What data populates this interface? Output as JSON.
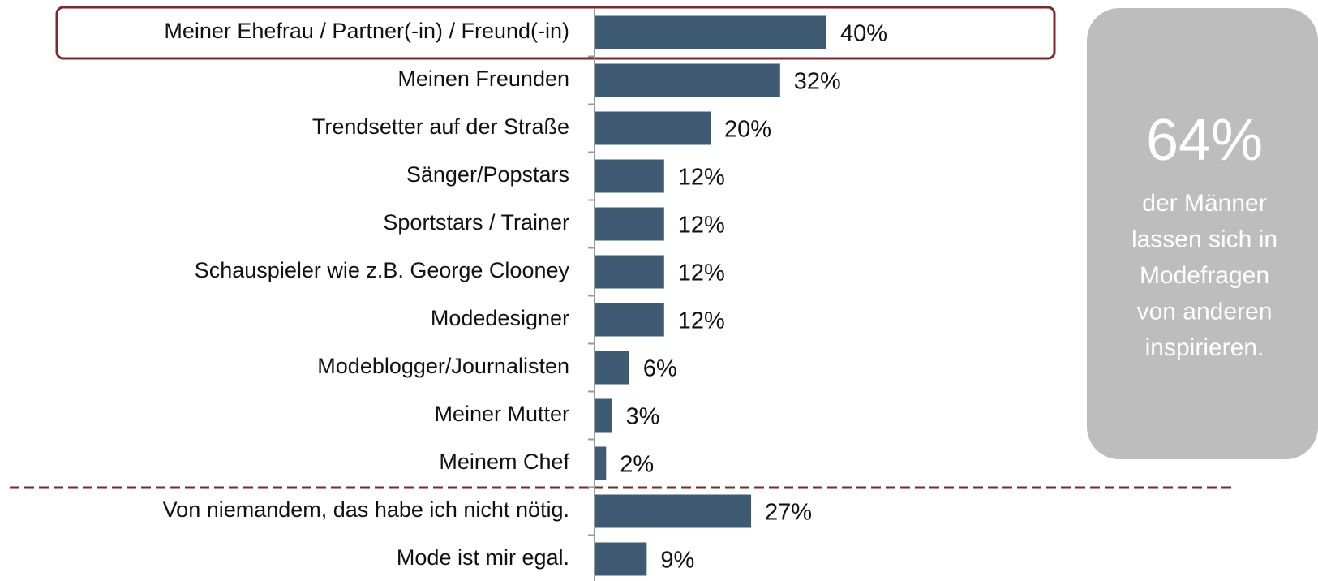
{
  "chart_data": {
    "type": "bar",
    "orientation": "horizontal",
    "categories": [
      "Meiner Ehefrau / Partner(-in) / Freund(-in)",
      "Meinen Freunden",
      "Trendsetter auf der Straße",
      "Sänger/Popstars",
      "Sportstars / Trainer",
      "Schauspieler wie z.B. George Clooney",
      "Modedesigner",
      "Modeblogger/Journalisten",
      "Meiner Mutter",
      "Meinem Chef",
      "Von niemandem, das habe ich nicht nötig.",
      "Mode ist mir egal."
    ],
    "values": [
      40,
      32,
      20,
      12,
      12,
      12,
      12,
      6,
      3,
      2,
      27,
      9
    ],
    "value_labels": [
      "40%",
      "32%",
      "20%",
      "12%",
      "12%",
      "12%",
      "12%",
      "6%",
      "3%",
      "2%",
      "27%",
      "9%"
    ],
    "color": "#3f5b74",
    "xlim": [
      0,
      70
    ],
    "callout": {
      "headline": "64%",
      "lines": [
        "der Männer",
        "lassen sich in",
        "Modefragen",
        "von anderen",
        "inspirieren."
      ]
    }
  }
}
